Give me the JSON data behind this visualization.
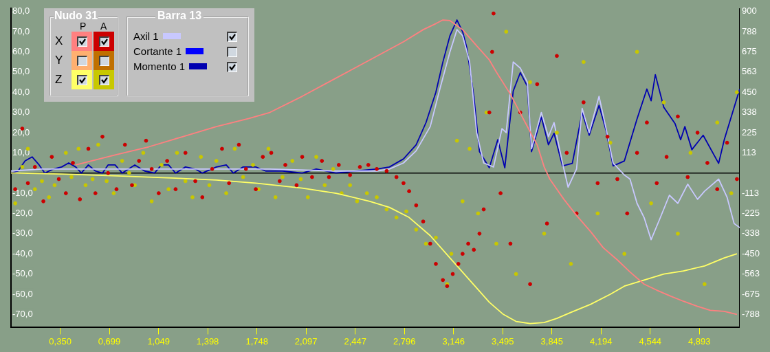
{
  "chart_data": {
    "type": "line",
    "legend": "top left",
    "legend_title": "Barra 13",
    "annotations": [
      "Nudo 31",
      "P",
      "A",
      "X",
      "Y",
      "Z"
    ],
    "xlim": [
      0,
      5.18
    ],
    "xticks": [
      {
        "value": 0.35,
        "label": "0,350"
      },
      {
        "value": 0.699,
        "label": "0,699"
      },
      {
        "value": 1.049,
        "label": "1,049"
      },
      {
        "value": 1.398,
        "label": "1,398"
      },
      {
        "value": 1.748,
        "label": "1,748"
      },
      {
        "value": 2.097,
        "label": "2,097"
      },
      {
        "value": 2.447,
        "label": "2,447"
      },
      {
        "value": 2.796,
        "label": "2,796"
      },
      {
        "value": 3.146,
        "label": "3,146"
      },
      {
        "value": 3.495,
        "label": "3,495"
      },
      {
        "value": 3.845,
        "label": "3,845"
      },
      {
        "value": 4.194,
        "label": "4,194"
      },
      {
        "value": 4.544,
        "label": "4,544"
      },
      {
        "value": 4.893,
        "label": "4,893"
      }
    ],
    "ylim": [
      -76.5,
      81.6
    ],
    "yticks": [
      {
        "value": 80,
        "label": "80,0"
      },
      {
        "value": 70,
        "label": "70,0"
      },
      {
        "value": 60,
        "label": "60,0"
      },
      {
        "value": 50,
        "label": "50,0"
      },
      {
        "value": 40,
        "label": "40,0"
      },
      {
        "value": 30,
        "label": "30,0"
      },
      {
        "value": 20,
        "label": "20,0"
      },
      {
        "value": 10,
        "label": "10,0"
      },
      {
        "value": -10,
        "label": "-10,0"
      },
      {
        "value": -20,
        "label": "-20,0"
      },
      {
        "value": -30,
        "label": "-30,0"
      },
      {
        "value": -40,
        "label": "-40,0"
      },
      {
        "value": -50,
        "label": "-50,0"
      },
      {
        "value": -60,
        "label": "-60,0"
      },
      {
        "value": -70,
        "label": "-70,0"
      }
    ],
    "y2lim": [
      -860.6,
      918
    ],
    "y2ticks": [
      900,
      {
        "value": 787.5,
        "label": "788"
      },
      675,
      {
        "value": 562.5,
        "label": "563"
      },
      450,
      {
        "value": 337.5,
        "label": "338"
      },
      225,
      {
        "value": 112.5,
        "label": "113"
      },
      {
        "value": -112.5,
        "label": "-113"
      },
      -225,
      {
        "value": -337.5,
        "label": "-338"
      },
      -450,
      {
        "value": -562.5,
        "label": "-563"
      },
      -675,
      {
        "value": -787.5,
        "label": "-788"
      }
    ],
    "ref_lines": [
      {
        "axis": "y",
        "value": 0,
        "color": "#000000"
      }
    ],
    "series": [
      {
        "color": "#ff8080",
        "x": [
          0.46,
          0.74,
          0.98,
          1.22,
          1.46,
          1.69,
          1.84,
          2.07,
          2.31,
          2.55,
          2.79,
          2.93,
          3.02,
          3.07,
          3.12,
          3.21,
          3.31,
          3.4,
          3.45,
          3.55,
          3.64,
          3.74,
          3.79,
          3.83,
          3.93,
          4.02,
          4.12,
          4.21,
          4.31,
          4.4,
          4.5,
          4.59,
          4.69,
          4.78,
          4.88,
          4.97,
          5.07,
          5.16
        ],
        "values": [
          4,
          9,
          13,
          18,
          23,
          27,
          30,
          38,
          47,
          56,
          65,
          71,
          74,
          75.8,
          75.5,
          71,
          63,
          56,
          50,
          39,
          27,
          14,
          3,
          -3,
          -13,
          -21,
          -29,
          -37,
          -43,
          -49,
          -55,
          -58,
          -61,
          -63.5,
          -66,
          -68,
          -68.5,
          -70
        ]
      },
      {
        "type": "scatter",
        "marker": "circle",
        "color": "#cc0000",
        "x": [
          0.03,
          0.08,
          0.12,
          0.17,
          0.23,
          0.29,
          0.34,
          0.39,
          0.44,
          0.49,
          0.55,
          0.6,
          0.65,
          0.69,
          0.75,
          0.81,
          0.86,
          0.91,
          0.96,
          1.0,
          1.05,
          1.11,
          1.17,
          1.24,
          1.31,
          1.36,
          1.43,
          1.5,
          1.55,
          1.62,
          1.67,
          1.74,
          1.79,
          1.85,
          1.91,
          1.95,
          2.03,
          2.07,
          2.14,
          2.21,
          2.26,
          2.33,
          2.41,
          2.48,
          2.54,
          2.6,
          2.67,
          2.74,
          2.79,
          2.83,
          2.88,
          2.93,
          2.98,
          3.02,
          3.07,
          3.1,
          3.14,
          3.18,
          3.21,
          3.25,
          3.29,
          3.33,
          3.36,
          3.4,
          3.42,
          3.43,
          3.48,
          3.55,
          3.62,
          3.69,
          3.74,
          3.81,
          3.88,
          3.95,
          4.02,
          4.07,
          4.17,
          4.24,
          4.31,
          4.38,
          4.45,
          4.52,
          4.59,
          4.66,
          4.74,
          4.81,
          4.88,
          4.95,
          5.02,
          5.09,
          5.16
        ],
        "values": [
          -8,
          22,
          -5,
          3,
          -14,
          8,
          -3,
          -10,
          5,
          -13,
          12,
          -10,
          18,
          0,
          -8,
          14,
          -6,
          6,
          16,
          2,
          -10,
          6,
          -8,
          10,
          -4,
          -12,
          2,
          12,
          -5,
          14,
          2,
          -8,
          8,
          10,
          -4,
          4,
          -6,
          8,
          -2,
          6,
          -2,
          4,
          -1,
          3,
          4,
          2,
          1,
          -2,
          -5,
          -9,
          -16,
          -24,
          -35,
          -45,
          -53,
          -56,
          -50,
          -45,
          -40,
          -35,
          -38,
          -30,
          -18,
          30,
          60,
          79,
          -10,
          -35,
          30,
          -55,
          44,
          -25,
          58,
          10,
          -20,
          35,
          -5,
          18,
          -3,
          -20,
          10,
          25,
          -5,
          8,
          28,
          -2,
          20,
          5,
          -8,
          15,
          -3
        ]
      },
      {
        "color": "#ffff66",
        "x": [
          0,
          0.36,
          0.79,
          1.17,
          1.46,
          1.74,
          2.07,
          2.31,
          2.55,
          2.69,
          2.83,
          2.98,
          3.12,
          3.26,
          3.4,
          3.5,
          3.59,
          3.69,
          3.79,
          3.88,
          3.98,
          4.12,
          4.26,
          4.36,
          4.5,
          4.64,
          4.78,
          4.93,
          5.07,
          5.16
        ],
        "values": [
          0,
          -0.5,
          -1.5,
          -2.5,
          -3.5,
          -5,
          -7.5,
          -10,
          -14,
          -17,
          -22,
          -31,
          -42,
          -53,
          -64,
          -70,
          -73.5,
          -74.5,
          -74,
          -72,
          -69,
          -65,
          -60,
          -56,
          -53,
          -50,
          -48.5,
          -46,
          -42,
          -40
        ]
      },
      {
        "type": "scatter",
        "marker": "circle",
        "color": "#c8c800",
        "x": [
          0.03,
          0.08,
          0.12,
          0.17,
          0.22,
          0.27,
          0.31,
          0.39,
          0.43,
          0.48,
          0.53,
          0.58,
          0.62,
          0.68,
          0.73,
          0.79,
          0.84,
          0.88,
          0.94,
          1.0,
          1.07,
          1.12,
          1.18,
          1.24,
          1.29,
          1.35,
          1.41,
          1.46,
          1.53,
          1.59,
          1.65,
          1.72,
          1.76,
          1.83,
          1.88,
          1.93,
          2.0,
          2.06,
          2.11,
          2.17,
          2.23,
          2.29,
          2.35,
          2.41,
          2.46,
          2.53,
          2.6,
          2.67,
          2.74,
          2.81,
          2.88,
          2.95,
          3.02,
          3.1,
          3.13,
          3.17,
          3.21,
          3.26,
          3.32,
          3.38,
          3.45,
          3.52,
          3.59,
          3.69,
          3.79,
          3.88,
          3.98,
          4.07,
          4.17,
          4.26,
          4.36,
          4.45,
          4.55,
          4.64,
          4.74,
          4.83,
          4.93,
          5.02,
          5.12,
          5.16
        ],
        "values": [
          -15,
          3,
          12,
          -8,
          -4,
          -12,
          -6,
          10,
          -2,
          12,
          -6,
          -3,
          14,
          -4,
          -10,
          6,
          0,
          -6,
          10,
          -14,
          4,
          -8,
          10,
          -4,
          -12,
          8,
          -6,
          6,
          -10,
          12,
          -2,
          4,
          -8,
          12,
          -12,
          -2,
          6,
          -3,
          -12,
          8,
          -6,
          2,
          -10,
          -6,
          -14,
          -10,
          -12,
          -18,
          -22,
          -19,
          -28,
          -35,
          -32,
          -55,
          -40,
          16,
          -14,
          12,
          -20,
          30,
          -35,
          70,
          -50,
          45,
          -30,
          20,
          -45,
          55,
          -20,
          15,
          -40,
          60,
          -15,
          35,
          -30,
          10,
          -55,
          25,
          -10,
          40
        ]
      },
      {
        "name": "Axil 1",
        "color": "#c8c8ff",
        "x": [
          0,
          0.22,
          0.5,
          0.88,
          1.36,
          1.84,
          2.31,
          2.6,
          2.69,
          2.79,
          2.88,
          2.98,
          3.05,
          3.12,
          3.17,
          3.21,
          3.26,
          3.31,
          3.36,
          3.43,
          3.49,
          3.52,
          3.57,
          3.62,
          3.67,
          3.7,
          3.77,
          3.82,
          3.86,
          3.92,
          3.96,
          4.02,
          4.06,
          4.11,
          4.18,
          4.23,
          4.28,
          4.36,
          4.4,
          4.45,
          4.5,
          4.55,
          4.61,
          4.68,
          4.74,
          4.81,
          4.88,
          4.93,
          5.03,
          5.09,
          5.14,
          5.18
        ],
        "values": [
          1,
          2,
          2,
          2,
          2,
          2,
          1,
          1,
          2,
          5,
          11,
          23,
          42,
          60,
          71,
          68,
          55,
          20,
          5,
          3,
          22,
          20,
          55,
          52,
          45,
          12,
          30,
          18,
          25,
          5,
          -7,
          2,
          32,
          20,
          38,
          22,
          5,
          -1,
          -3,
          -15,
          -22,
          -33,
          -23,
          -11,
          -15,
          -5.5,
          -13,
          -9,
          -3,
          -12,
          -25,
          -27
        ]
      },
      {
        "name": "Cortante 1",
        "color": "#0000ff"
      },
      {
        "name": "Momento 1",
        "color": "#0000b0",
        "x": [
          0,
          0.05,
          0.1,
          0.15,
          0.2,
          0.24,
          0.3,
          0.36,
          0.41,
          0.46,
          0.5,
          0.55,
          0.6,
          0.65,
          0.69,
          0.74,
          0.79,
          0.88,
          0.95,
          1.02,
          1.07,
          1.12,
          1.17,
          1.24,
          1.31,
          1.36,
          1.46,
          1.53,
          1.58,
          1.65,
          1.74,
          1.81,
          1.93,
          2.07,
          2.17,
          2.31,
          2.45,
          2.6,
          2.69,
          2.79,
          2.88,
          2.95,
          3.02,
          3.07,
          3.12,
          3.17,
          3.21,
          3.24,
          3.29,
          3.33,
          3.4,
          3.46,
          3.51,
          3.57,
          3.62,
          3.67,
          3.7,
          3.77,
          3.82,
          3.86,
          3.92,
          3.99,
          4.06,
          4.11,
          4.18,
          4.23,
          4.28,
          4.36,
          4.45,
          4.52,
          4.55,
          4.58,
          4.64,
          4.72,
          4.76,
          4.79,
          4.84,
          4.92,
          5.03,
          5.07,
          5.18
        ],
        "values": [
          0,
          1,
          6,
          8,
          4,
          0,
          2,
          3,
          5,
          3,
          0,
          4,
          1,
          0,
          4,
          4,
          0,
          4,
          1,
          0,
          4,
          4,
          0,
          3,
          2,
          0,
          3,
          4,
          0,
          3,
          3,
          1,
          1,
          0,
          2,
          0,
          1,
          2,
          3,
          7,
          14,
          25,
          40,
          55,
          68,
          75.8,
          70,
          62,
          38,
          10.6,
          2.6,
          16.5,
          2.6,
          40.6,
          49.7,
          43,
          10.6,
          27.7,
          14,
          19.7,
          3.5,
          4.8,
          30,
          18.7,
          33.5,
          21,
          3.5,
          6,
          26.8,
          41.6,
          35.8,
          48.7,
          32.6,
          24.5,
          16.5,
          23,
          11.6,
          18.7,
          4.8,
          16.5,
          41.6
        ]
      }
    ]
  }
}
